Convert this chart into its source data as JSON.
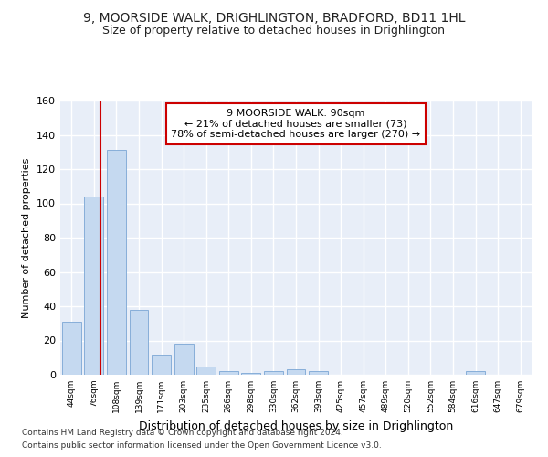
{
  "title_line1": "9, MOORSIDE WALK, DRIGHLINGTON, BRADFORD, BD11 1HL",
  "title_line2": "Size of property relative to detached houses in Drighlington",
  "xlabel": "Distribution of detached houses by size in Drighlington",
  "ylabel": "Number of detached properties",
  "bar_color": "#c5d9f0",
  "bar_edge_color": "#7aa6d4",
  "background_color": "#e8eef8",
  "grid_color": "#ffffff",
  "annotation_box_color": "#cc0000",
  "property_line_color": "#cc0000",
  "categories": [
    "44sqm",
    "76sqm",
    "108sqm",
    "139sqm",
    "171sqm",
    "203sqm",
    "235sqm",
    "266sqm",
    "298sqm",
    "330sqm",
    "362sqm",
    "393sqm",
    "425sqm",
    "457sqm",
    "489sqm",
    "520sqm",
    "552sqm",
    "584sqm",
    "616sqm",
    "647sqm",
    "679sqm"
  ],
  "values": [
    31,
    104,
    131,
    38,
    12,
    18,
    5,
    2,
    1,
    2,
    3,
    2,
    0,
    0,
    0,
    0,
    0,
    0,
    2,
    0,
    0
  ],
  "property_line_x": 1.3,
  "annotation_text_line1": "9 MOORSIDE WALK: 90sqm",
  "annotation_text_line2": "← 21% of detached houses are smaller (73)",
  "annotation_text_line3": "78% of semi-detached houses are larger (270) →",
  "ylim": [
    0,
    160
  ],
  "yticks": [
    0,
    20,
    40,
    60,
    80,
    100,
    120,
    140,
    160
  ],
  "footer_line1": "Contains HM Land Registry data © Crown copyright and database right 2024.",
  "footer_line2": "Contains public sector information licensed under the Open Government Licence v3.0."
}
